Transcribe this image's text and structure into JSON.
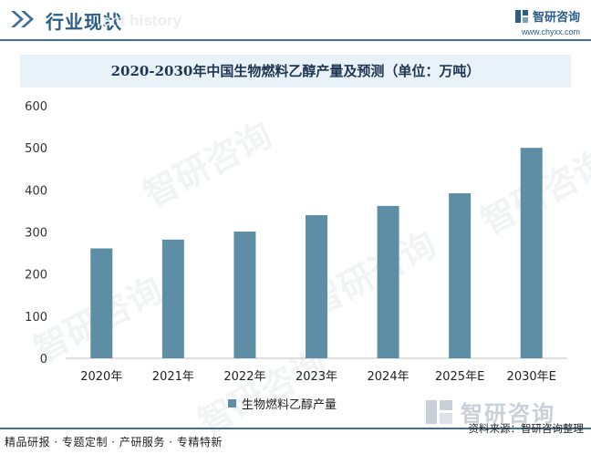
{
  "header": {
    "title": "行业现状",
    "ghost_text": "ent history",
    "brand_name": "智研咨询",
    "brand_url": "www.chyxx.com"
  },
  "chart_data": {
    "type": "bar",
    "title": "2020-2030年中国生物燃料乙醇产量及预测（单位：万吨）",
    "categories": [
      "2020年",
      "2021年",
      "2022年",
      "2023年",
      "2024年",
      "2025年E",
      "2030年E"
    ],
    "series": [
      {
        "name": "生物燃料乙醇产量",
        "values": [
          261,
          282,
          301,
          340,
          362,
          392,
          500
        ]
      }
    ],
    "ylim": [
      0,
      600
    ],
    "yticks": [
      0,
      100,
      200,
      300,
      400,
      500,
      600
    ],
    "grid": false,
    "legend_position": "bottom",
    "bar_color": "#5d8ea5"
  },
  "watermark": {
    "text": "智研咨询"
  },
  "footer": {
    "left": "精品研报 · 专题定制 · 产研服务 · 专精特新",
    "source": "资料来源：智研咨询整理",
    "logo_name": "智研咨询"
  },
  "colors": {
    "accent": "#2a5d87",
    "bar": "#5d8ea5",
    "title_bg": "#eaf2f9"
  }
}
